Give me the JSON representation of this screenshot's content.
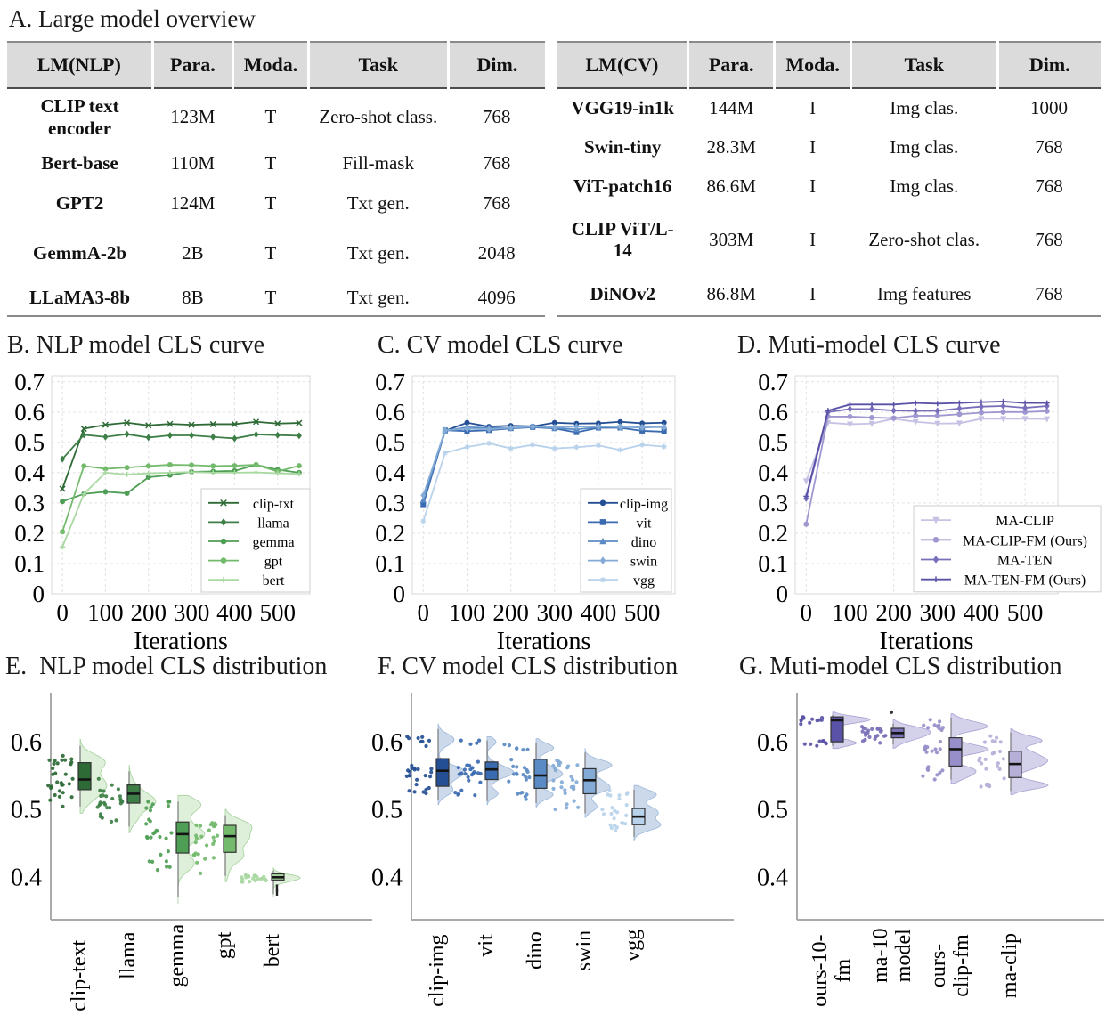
{
  "panel_a": {
    "title": "A. Large model overview",
    "nlp_table": {
      "headers": [
        "LM(NLP)",
        "Para.",
        "Moda.",
        "Task",
        "Dim."
      ],
      "rows": [
        [
          "CLIP text encoder",
          "123M",
          "T",
          "Zero-shot class.",
          "768"
        ],
        [
          "Bert-base",
          "110M",
          "T",
          "Fill-mask",
          "768"
        ],
        [
          "GPT2",
          "124M",
          "T",
          "Txt gen.",
          "768"
        ],
        [
          "GemmA-2b",
          "2B",
          "T",
          "Txt gen.",
          "2048"
        ],
        [
          "LLaMA3-8b",
          "8B",
          "T",
          "Txt gen.",
          "4096"
        ]
      ]
    },
    "cv_table": {
      "headers": [
        "LM(CV)",
        "Para.",
        "Moda.",
        "Task",
        "Dim."
      ],
      "rows": [
        [
          "VGG19-in1k",
          "144M",
          "I",
          "Img clas.",
          "1000"
        ],
        [
          "Swin-tiny",
          "28.3M",
          "I",
          "Img clas.",
          "768"
        ],
        [
          "ViT-patch16",
          "86.6M",
          "I",
          "Img clas.",
          "768"
        ],
        [
          "CLIP ViT/L-14",
          "303M",
          "I",
          "Zero-shot clas.",
          "768"
        ],
        [
          "DiNOv2",
          "86.8M",
          "I",
          "Img features",
          "768"
        ]
      ]
    }
  },
  "chart_data": [
    {
      "id": "B",
      "type": "line",
      "title": "B. NLP model CLS curve",
      "xlabel": "Iterations",
      "xlim": [
        -25,
        575
      ],
      "ylim": [
        0,
        0.72
      ],
      "xticks": [
        0,
        100,
        200,
        300,
        400,
        500
      ],
      "yticks": [
        0,
        0.1,
        0.2,
        0.3,
        0.4,
        0.5,
        0.6,
        0.7
      ],
      "x": [
        0,
        50,
        100,
        150,
        200,
        250,
        300,
        350,
        400,
        450,
        500,
        550
      ],
      "grid": true,
      "legend_position": "lower right",
      "series": [
        {
          "name": "clip-txt",
          "color": "#2d6a35",
          "marker": "x",
          "values": [
            0.347,
            0.545,
            0.558,
            0.565,
            0.556,
            0.561,
            0.558,
            0.56,
            0.56,
            0.568,
            0.562,
            0.564
          ]
        },
        {
          "name": "llama",
          "color": "#3d7f47",
          "marker": "diamond",
          "values": [
            0.445,
            0.525,
            0.518,
            0.527,
            0.516,
            0.523,
            0.523,
            0.518,
            0.513,
            0.526,
            0.524,
            0.522
          ]
        },
        {
          "name": "gemma",
          "color": "#4f9e55",
          "marker": "circle",
          "values": [
            0.305,
            0.33,
            0.337,
            0.332,
            0.385,
            0.392,
            0.403,
            0.404,
            0.406,
            0.426,
            0.41,
            0.4
          ]
        },
        {
          "name": "gpt",
          "color": "#73ba6c",
          "marker": "circle",
          "values": [
            0.205,
            0.422,
            0.413,
            0.417,
            0.422,
            0.426,
            0.425,
            0.422,
            0.423,
            0.426,
            0.404,
            0.423
          ]
        },
        {
          "name": "bert",
          "color": "#a9d8a2",
          "marker": "plus",
          "values": [
            0.155,
            0.33,
            0.4,
            0.394,
            0.398,
            0.4,
            0.402,
            0.4,
            0.4,
            0.401,
            0.398,
            0.396
          ]
        }
      ]
    },
    {
      "id": "C",
      "type": "line",
      "title": "C. CV model CLS curve",
      "xlabel": "Iterations",
      "xlim": [
        -25,
        575
      ],
      "ylim": [
        0,
        0.72
      ],
      "xticks": [
        0,
        100,
        200,
        300,
        400,
        500
      ],
      "yticks": [
        0,
        0.1,
        0.2,
        0.3,
        0.4,
        0.5,
        0.6,
        0.7
      ],
      "x": [
        0,
        50,
        100,
        150,
        200,
        250,
        300,
        350,
        400,
        450,
        500,
        550
      ],
      "grid": true,
      "legend_position": "lower right",
      "series": [
        {
          "name": "clip-img",
          "color": "#254f94",
          "marker": "circle",
          "values": [
            0.3,
            0.538,
            0.565,
            0.552,
            0.555,
            0.553,
            0.565,
            0.562,
            0.563,
            0.568,
            0.563,
            0.565
          ]
        },
        {
          "name": "vit",
          "color": "#3a6ab0",
          "marker": "square",
          "values": [
            0.295,
            0.54,
            0.537,
            0.54,
            0.546,
            0.55,
            0.546,
            0.533,
            0.548,
            0.548,
            0.538,
            0.535
          ]
        },
        {
          "name": "dino",
          "color": "#5b8bc4",
          "marker": "triangle",
          "values": [
            0.31,
            0.538,
            0.55,
            0.548,
            0.547,
            0.553,
            0.547,
            0.543,
            0.55,
            0.553,
            0.548,
            0.553
          ]
        },
        {
          "name": "swin",
          "color": "#83abd6",
          "marker": "diamond",
          "values": [
            0.325,
            0.54,
            0.545,
            0.543,
            0.548,
            0.552,
            0.55,
            0.552,
            0.553,
            0.55,
            0.55,
            0.55
          ]
        },
        {
          "name": "vgg",
          "color": "#b7d2ea",
          "marker": "asterisk",
          "values": [
            0.24,
            0.465,
            0.485,
            0.497,
            0.48,
            0.492,
            0.48,
            0.484,
            0.49,
            0.475,
            0.492,
            0.486
          ]
        }
      ]
    },
    {
      "id": "D",
      "type": "line",
      "title": "D. Muti-model CLS curve",
      "xlabel": "Iterations",
      "xlim": [
        -25,
        575
      ],
      "ylim": [
        0,
        0.72
      ],
      "xticks": [
        0,
        100,
        200,
        300,
        400,
        500
      ],
      "yticks": [
        0,
        0.1,
        0.2,
        0.3,
        0.4,
        0.5,
        0.6,
        0.7
      ],
      "x": [
        0,
        50,
        100,
        150,
        200,
        250,
        300,
        350,
        400,
        450,
        500,
        550
      ],
      "grid": true,
      "legend_position": "lower right",
      "series": [
        {
          "name": "MA-CLIP",
          "color": "#c6c2e4",
          "marker": "triangle-down",
          "values": [
            0.372,
            0.565,
            0.56,
            0.562,
            0.578,
            0.568,
            0.562,
            0.563,
            0.578,
            0.578,
            0.578,
            0.577
          ]
        },
        {
          "name": "MA-CLIP-FM (Ours)",
          "color": "#9e97d0",
          "marker": "circle",
          "values": [
            0.23,
            0.585,
            0.585,
            0.582,
            0.58,
            0.588,
            0.588,
            0.593,
            0.598,
            0.6,
            0.6,
            0.603
          ]
        },
        {
          "name": "MA-TEN",
          "color": "#776fba",
          "marker": "diamond",
          "values": [
            0.315,
            0.6,
            0.61,
            0.61,
            0.605,
            0.604,
            0.604,
            0.612,
            0.618,
            0.62,
            0.614,
            0.62
          ]
        },
        {
          "name": "MA-TEN-FM (Ours)",
          "color": "#5a52a6",
          "marker": "plus",
          "values": [
            0.322,
            0.605,
            0.625,
            0.625,
            0.625,
            0.63,
            0.628,
            0.63,
            0.633,
            0.635,
            0.63,
            0.63
          ]
        }
      ]
    },
    {
      "id": "E",
      "type": "raincloud",
      "title": "E.  NLP model CLS distribution",
      "ylim": [
        0.337,
        0.658
      ],
      "yticks": [
        0.4,
        0.5,
        0.6
      ],
      "violin_fill": "#d8ecd3",
      "violin_edge": "#a3d19b",
      "violin_width": 30,
      "categories": [
        {
          "label": "clip-text",
          "label_lines": [
            "clip-text"
          ],
          "color": "#2d6a35",
          "whisker": [
            0.505,
            0.595
          ],
          "q1": 0.53,
          "median": 0.545,
          "q3": 0.57,
          "clusters": [
            [
              0.525,
              0.012,
              14
            ],
            [
              0.563,
              0.013,
              16
            ]
          ]
        },
        {
          "label": "llama",
          "label_lines": [
            "llama"
          ],
          "color": "#3d7f47",
          "whisker": [
            0.475,
            0.557
          ],
          "q1": 0.51,
          "median": 0.524,
          "q3": 0.537,
          "clusters": [
            [
              0.52,
              0.012,
              22
            ],
            [
              0.487,
              0.008,
              6
            ]
          ]
        },
        {
          "label": "gemma",
          "label_lines": [
            "gemma"
          ],
          "color": "#4f9e55",
          "whisker": [
            0.37,
            0.512
          ],
          "q1": 0.436,
          "median": 0.464,
          "q3": 0.482,
          "clusters": [
            [
              0.51,
              0.008,
              9
            ],
            [
              0.458,
              0.015,
              15
            ],
            [
              0.415,
              0.01,
              6
            ]
          ]
        },
        {
          "label": "gpt",
          "label_lines": [
            "gpt"
          ],
          "color": "#73ba6c",
          "whisker": [
            0.402,
            0.492
          ],
          "q1": 0.437,
          "median": 0.461,
          "q3": 0.477,
          "clusters": [
            [
              0.47,
              0.01,
              14
            ],
            [
              0.43,
              0.012,
              12
            ]
          ]
        },
        {
          "label": "bert",
          "label_lines": [
            "bert"
          ],
          "color": "#a9d8a2",
          "whisker": [
            0.375,
            0.41
          ],
          "q1": 0.396,
          "median": 0.4,
          "q3": 0.405,
          "clusters": [
            [
              0.4,
              0.004,
              22
            ]
          ],
          "outliers": [
            0.378,
            0.384
          ],
          "outlier_style": "dash"
        }
      ]
    },
    {
      "id": "F",
      "type": "raincloud",
      "title": "F. CV model CLS distribution",
      "ylim": [
        0.337,
        0.658
      ],
      "yticks": [
        0.4,
        0.5,
        0.6
      ],
      "violin_fill": "#c3d2e8",
      "violin_edge": "#9db8da",
      "violin_width": 30,
      "categories": [
        {
          "label": "clip-img",
          "label_lines": [
            "clip-img"
          ],
          "color": "#254f94",
          "whisker": [
            0.515,
            0.62
          ],
          "q1": 0.535,
          "median": 0.558,
          "q3": 0.576,
          "clusters": [
            [
              0.608,
              0.006,
              8
            ],
            [
              0.553,
              0.012,
              16
            ],
            [
              0.527,
              0.006,
              6
            ]
          ]
        },
        {
          "label": "vit",
          "label_lines": [
            "vit"
          ],
          "color": "#3a6ab0",
          "whisker": [
            0.513,
            0.603
          ],
          "q1": 0.545,
          "median": 0.56,
          "q3": 0.571,
          "clusters": [
            [
              0.6,
              0.005,
              4
            ],
            [
              0.557,
              0.008,
              18
            ],
            [
              0.525,
              0.005,
              5
            ]
          ]
        },
        {
          "label": "dino",
          "label_lines": [
            "dino"
          ],
          "color": "#5b8bc4",
          "whisker": [
            0.51,
            0.6
          ],
          "q1": 0.532,
          "median": 0.551,
          "q3": 0.575,
          "clusters": [
            [
              0.59,
              0.005,
              6
            ],
            [
              0.553,
              0.009,
              14
            ],
            [
              0.52,
              0.005,
              6
            ]
          ]
        },
        {
          "label": "swin",
          "label_lines": [
            "swin"
          ],
          "color": "#83abd6",
          "whisker": [
            0.495,
            0.585
          ],
          "q1": 0.524,
          "median": 0.544,
          "q3": 0.561,
          "clusters": [
            [
              0.565,
              0.008,
              12
            ],
            [
              0.537,
              0.008,
              12
            ],
            [
              0.508,
              0.006,
              5
            ]
          ]
        },
        {
          "label": "vgg",
          "label_lines": [
            "vgg"
          ],
          "color": "#b7d2ea",
          "whisker": [
            0.46,
            0.53
          ],
          "q1": 0.478,
          "median": 0.49,
          "q3": 0.502,
          "clusters": [
            [
              0.522,
              0.004,
              6
            ],
            [
              0.49,
              0.009,
              18
            ]
          ]
        }
      ]
    },
    {
      "id": "G",
      "type": "raincloud",
      "title": "G. Muti-model CLS distribution",
      "ylim": [
        0.337,
        0.658
      ],
      "yticks": [
        0.4,
        0.5,
        0.6
      ],
      "violin_fill": "#cdc9e8",
      "violin_edge": "#a9a2d3",
      "violin_width": 42,
      "categories": [
        {
          "label": "ours-10-fm",
          "label_lines": [
            "ours-10-",
            "fm"
          ],
          "color": "#5a52a6",
          "whisker": [
            0.595,
            0.641
          ],
          "q1": 0.601,
          "median": 0.633,
          "q3": 0.638,
          "clusters": [
            [
              0.634,
              0.003,
              13
            ],
            [
              0.6,
              0.003,
              8
            ]
          ]
        },
        {
          "label": "ma-10 model",
          "label_lines": [
            "ma-10",
            "model"
          ],
          "color": "#7a71b8",
          "whisker": [
            0.597,
            0.628
          ],
          "q1": 0.607,
          "median": 0.614,
          "q3": 0.621,
          "clusters": [
            [
              0.612,
              0.007,
              24
            ]
          ],
          "outliers": [
            0.645
          ],
          "outlier_style": "dot"
        },
        {
          "label": "ours-clip-fm",
          "label_lines": [
            "ours-",
            "clip-fm"
          ],
          "color": "#968fc9",
          "whisker": [
            0.545,
            0.637
          ],
          "q1": 0.565,
          "median": 0.59,
          "q3": 0.607,
          "clusters": [
            [
              0.625,
              0.006,
              10
            ],
            [
              0.59,
              0.008,
              10
            ],
            [
              0.555,
              0.007,
              8
            ]
          ]
        },
        {
          "label": "ma-clip",
          "label_lines": [
            "ma-clip"
          ],
          "color": "#b6b0d9",
          "whisker": [
            0.528,
            0.615
          ],
          "q1": 0.548,
          "median": 0.568,
          "q3": 0.587,
          "clusters": [
            [
              0.603,
              0.005,
              6
            ],
            [
              0.57,
              0.009,
              12
            ],
            [
              0.537,
              0.005,
              7
            ]
          ]
        }
      ]
    }
  ]
}
